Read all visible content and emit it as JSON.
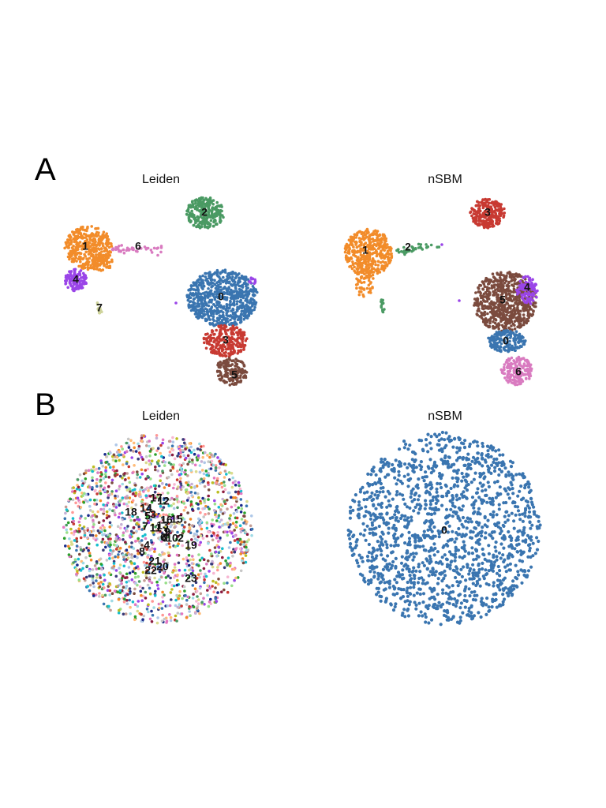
{
  "figure": {
    "panel_a_label": "A",
    "panel_b_label": "B"
  },
  "palette": {
    "c0": "#3a75b0",
    "c1": "#f28c2a",
    "c2": "#4a9a63",
    "c3": "#c83a32",
    "c4": "#9a45e8",
    "c5": "#7b4b3e",
    "c6": "#d97bc0",
    "c7": "#cfd49c"
  },
  "chart_data": [
    {
      "type": "scatter",
      "panel": "A",
      "title": "Leiden",
      "xlabel": "",
      "ylabel": "",
      "grid": false,
      "clusters": [
        {
          "label": "0",
          "color": "#3a75b0"
        },
        {
          "label": "1",
          "color": "#f28c2a"
        },
        {
          "label": "2",
          "color": "#4a9a63"
        },
        {
          "label": "3",
          "color": "#c83a32"
        },
        {
          "label": "4",
          "color": "#9a45e8"
        },
        {
          "label": "5",
          "color": "#7b4b3e"
        },
        {
          "label": "6",
          "color": "#d97bc0"
        },
        {
          "label": "7",
          "color": "#cfd49c"
        }
      ]
    },
    {
      "type": "scatter",
      "panel": "A",
      "title": "nSBM",
      "xlabel": "",
      "ylabel": "",
      "grid": false,
      "clusters": [
        {
          "label": "0",
          "color": "#3a75b0"
        },
        {
          "label": "1",
          "color": "#f28c2a"
        },
        {
          "label": "2",
          "color": "#4a9a63"
        },
        {
          "label": "3",
          "color": "#c83a32"
        },
        {
          "label": "4",
          "color": "#9a45e8"
        },
        {
          "label": "5",
          "color": "#7b4b3e"
        },
        {
          "label": "6",
          "color": "#d97bc0"
        }
      ]
    },
    {
      "type": "scatter",
      "panel": "B",
      "title": "Leiden",
      "xlabel": "",
      "ylabel": "",
      "grid": false,
      "clusters": [
        {
          "label": "0"
        },
        {
          "label": "1"
        },
        {
          "label": "2"
        },
        {
          "label": "3"
        },
        {
          "label": "4"
        },
        {
          "label": "5"
        },
        {
          "label": "6"
        },
        {
          "label": "7"
        },
        {
          "label": "8"
        },
        {
          "label": "9"
        },
        {
          "label": "10"
        },
        {
          "label": "11"
        },
        {
          "label": "12"
        },
        {
          "label": "13"
        },
        {
          "label": "14"
        },
        {
          "label": "15"
        },
        {
          "label": "16"
        },
        {
          "label": "17"
        },
        {
          "label": "18"
        },
        {
          "label": "19"
        },
        {
          "label": "20"
        },
        {
          "label": "21"
        },
        {
          "label": "22"
        },
        {
          "label": "23"
        }
      ]
    },
    {
      "type": "scatter",
      "panel": "B",
      "title": "nSBM",
      "xlabel": "",
      "ylabel": "",
      "grid": false,
      "clusters": [
        {
          "label": "0",
          "color": "#3a75b0"
        }
      ]
    }
  ]
}
